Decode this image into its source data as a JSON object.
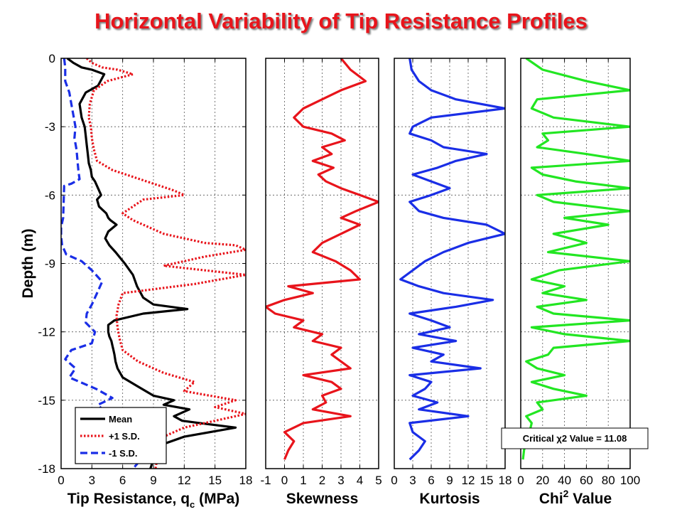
{
  "title": "Horizontal Variability of Tip Resistance Profiles",
  "chart_data": [
    {
      "type": "line",
      "name": "tip-resistance",
      "xlabel": "Tip Resistance, q",
      "xlabel_sub": "c",
      "xlabel_tail": " (MPa)",
      "ylabel": "Depth (m)",
      "xlim": [
        0,
        18
      ],
      "ylim": [
        -18,
        0
      ],
      "xticks": [
        0,
        3,
        6,
        9,
        12,
        15,
        18
      ],
      "yticks": [
        0,
        -3,
        -6,
        -9,
        -12,
        -15,
        -18
      ],
      "grid": true,
      "legend": {
        "position": "bottom-left",
        "entries": [
          "Mean",
          "+1 S.D.",
          "-1 S.D."
        ]
      },
      "series": [
        {
          "name": "Mean",
          "color": "#000000",
          "dash": "solid",
          "x": [
            0.6,
            1.2,
            2.0,
            3.0,
            4.2,
            3.6,
            2.4,
            1.8,
            2.0,
            2.3,
            2.4,
            2.5,
            2.6,
            2.7,
            2.9,
            3.0,
            3.3,
            3.6,
            3.9,
            3.5,
            3.7,
            4.4,
            4.6,
            4.8,
            5.4,
            4.6,
            4.3,
            4.7,
            5.3,
            6.2,
            7.0,
            7.4,
            8.0,
            9.0,
            12.3,
            8.0,
            5.2,
            4.6,
            4.6,
            4.7,
            4.9,
            5.0,
            5.1,
            5.2,
            5.3,
            5.5,
            6.0,
            7.5,
            9.0,
            11.0,
            10.0,
            12.5,
            11.0,
            11.8,
            13.5,
            17.0,
            12.0,
            9.5,
            9.3,
            9.0,
            8.7
          ],
          "y": [
            0,
            -0.2,
            -0.4,
            -0.5,
            -0.7,
            -1.2,
            -1.5,
            -2.0,
            -2.6,
            -3.0,
            -3.4,
            -3.8,
            -4.2,
            -4.6,
            -4.9,
            -5.2,
            -5.4,
            -5.7,
            -6.0,
            -6.2,
            -6.5,
            -6.8,
            -7.0,
            -7.1,
            -7.3,
            -7.6,
            -7.9,
            -8.2,
            -8.5,
            -9.0,
            -9.5,
            -10.0,
            -10.5,
            -10.8,
            -11.0,
            -11.2,
            -11.5,
            -11.7,
            -12.0,
            -12.2,
            -12.4,
            -12.6,
            -12.8,
            -13.0,
            -13.3,
            -13.6,
            -14.0,
            -14.4,
            -14.8,
            -15.0,
            -15.2,
            -15.4,
            -15.7,
            -15.9,
            -16.0,
            -16.2,
            -16.6,
            -17.0,
            -17.3,
            -17.6,
            -18.0
          ]
        },
        {
          "name": "+1 S.D.",
          "color": "#e8141b",
          "dash": "dotted",
          "x": [
            2.5,
            3.0,
            4.0,
            5.5,
            7.0,
            4.5,
            3.2,
            2.8,
            2.7,
            2.9,
            3.0,
            3.2,
            3.5,
            5.0,
            7.0,
            9.0,
            11.0,
            12.0,
            8.0,
            7.0,
            6.0,
            7.0,
            8.0,
            9.0,
            10.0,
            12.0,
            14.0,
            17.0,
            18.0,
            14.0,
            10.0,
            18.0,
            13.0,
            6.0,
            5.6,
            5.4,
            5.5,
            5.7,
            6.0,
            7.5,
            10.0,
            13.0,
            12.0,
            17.0,
            15.0,
            18.0,
            15.0,
            12.0,
            10.0,
            9.5,
            9.2
          ],
          "y": [
            0,
            -0.2,
            -0.4,
            -0.5,
            -0.7,
            -1.0,
            -1.4,
            -2.0,
            -2.6,
            -3.0,
            -3.5,
            -4.0,
            -4.5,
            -4.9,
            -5.2,
            -5.5,
            -5.8,
            -6.0,
            -6.2,
            -6.5,
            -6.8,
            -7.1,
            -7.3,
            -7.5,
            -7.7,
            -7.9,
            -8.1,
            -8.2,
            -8.4,
            -8.7,
            -9.1,
            -9.5,
            -9.9,
            -10.3,
            -10.8,
            -11.3,
            -11.8,
            -12.3,
            -12.8,
            -13.3,
            -13.8,
            -14.2,
            -14.6,
            -15.0,
            -15.3,
            -15.6,
            -15.9,
            -16.2,
            -16.6,
            -17.2,
            -18.0
          ]
        },
        {
          "name": "-1 S.D.",
          "color": "#1a2ee6",
          "dash": "dashed",
          "x": [
            0.3,
            0.4,
            0.4,
            0.8,
            1.0,
            1.2,
            1.4,
            1.3,
            1.5,
            1.6,
            1.7,
            1.8,
            1.0,
            0.3,
            0.2,
            0.0,
            0.0,
            0.1,
            0.5,
            2.0,
            3.0,
            4.0,
            3.5,
            3.0,
            2.5,
            2.4,
            3.3,
            3.0,
            1.0,
            0.4,
            1.4,
            0.8,
            3.4,
            5.0,
            3.6,
            4.2,
            4.0,
            4.5,
            6.0,
            5.3,
            7.0,
            8.0,
            9.0,
            8.0,
            7.5,
            7.4,
            7.2,
            7.0
          ],
          "y": [
            0,
            -0.4,
            -1.0,
            -1.5,
            -2.0,
            -2.5,
            -3.0,
            -3.5,
            -4.0,
            -4.5,
            -5.0,
            -5.3,
            -5.5,
            -5.6,
            -7.0,
            -7.4,
            -7.8,
            -8.2,
            -8.6,
            -8.9,
            -9.3,
            -9.8,
            -10.3,
            -10.8,
            -11.2,
            -11.6,
            -12.0,
            -12.5,
            -12.8,
            -13.2,
            -13.6,
            -14.0,
            -14.5,
            -14.9,
            -15.2,
            -15.5,
            -15.8,
            -16.1,
            -16.4,
            -16.6,
            -16.8,
            -17.0,
            -17.3,
            -17.5,
            -17.7,
            -17.8,
            -17.9,
            -18.0
          ]
        }
      ]
    },
    {
      "type": "line",
      "name": "skewness",
      "xlabel": "Skewness",
      "xlim": [
        -1,
        5
      ],
      "ylim": [
        -18,
        0
      ],
      "xticks": [
        -1,
        0,
        1,
        2,
        3,
        4,
        5
      ],
      "grid": true,
      "series": [
        {
          "color": "#e8141b",
          "x": [
            3.0,
            3.5,
            4.3,
            3.0,
            2.0,
            1.0,
            0.5,
            1.0,
            2.5,
            3.2,
            2.0,
            2.5,
            1.5,
            2.6,
            1.8,
            2.2,
            3.0,
            4.0,
            5.0,
            3.8,
            3.0,
            4.0,
            3.0,
            2.0,
            1.5,
            2.7,
            3.5,
            4.0,
            0.2,
            1.5,
            0.0,
            -1.0,
            -0.5,
            1.0,
            0.5,
            2.0,
            1.5,
            3.0,
            2.5,
            3.0,
            3.5,
            1.0,
            2.5,
            3.0,
            2.0,
            2.2,
            1.5,
            3.5,
            1.0,
            0.0,
            0.5,
            0.2,
            0.0
          ],
          "y": [
            0,
            -0.5,
            -1.0,
            -1.4,
            -1.8,
            -2.2,
            -2.6,
            -3.0,
            -3.3,
            -3.6,
            -3.9,
            -4.2,
            -4.5,
            -4.8,
            -5.1,
            -5.4,
            -5.7,
            -6.0,
            -6.3,
            -6.7,
            -7.0,
            -7.3,
            -7.7,
            -8.1,
            -8.5,
            -8.9,
            -9.3,
            -9.7,
            -10.0,
            -10.3,
            -10.6,
            -10.9,
            -11.2,
            -11.5,
            -11.8,
            -12.1,
            -12.4,
            -12.7,
            -13.0,
            -13.3,
            -13.6,
            -13.9,
            -14.2,
            -14.5,
            -14.8,
            -15.1,
            -15.4,
            -15.7,
            -16.0,
            -16.4,
            -16.8,
            -17.2,
            -17.6
          ]
        }
      ]
    },
    {
      "type": "line",
      "name": "kurtosis",
      "xlabel": "Kurtosis",
      "xlim": [
        0,
        18
      ],
      "ylim": [
        -18,
        0
      ],
      "xticks": [
        0,
        3,
        6,
        9,
        12,
        15,
        18
      ],
      "grid": true,
      "series": [
        {
          "color": "#1a2ee6",
          "x": [
            2.5,
            2.8,
            4.0,
            6.0,
            10.0,
            18.0,
            6.0,
            3.0,
            2.5,
            6.0,
            8.0,
            15.0,
            10.0,
            7.0,
            3.0,
            6.0,
            9.0,
            6.0,
            2.5,
            4.0,
            8.0,
            15.0,
            18.0,
            12.0,
            8.0,
            5.0,
            3.0,
            1.0,
            4.0,
            8.0,
            16.0,
            10.0,
            2.5,
            6.0,
            9.0,
            4.0,
            10.0,
            3.0,
            8.0,
            6.0,
            14.0,
            2.5,
            6.0,
            5.0,
            3.0,
            7.0,
            4.0,
            12.0,
            2.5,
            3.0,
            5.0,
            4.0,
            2.5
          ],
          "y": [
            0,
            -0.5,
            -1.0,
            -1.4,
            -1.8,
            -2.2,
            -2.6,
            -3.0,
            -3.3,
            -3.6,
            -3.9,
            -4.2,
            -4.5,
            -4.8,
            -5.1,
            -5.4,
            -5.7,
            -6.0,
            -6.3,
            -6.7,
            -7.0,
            -7.3,
            -7.7,
            -8.1,
            -8.5,
            -8.9,
            -9.3,
            -9.7,
            -10.0,
            -10.3,
            -10.6,
            -10.9,
            -11.2,
            -11.5,
            -11.8,
            -12.1,
            -12.4,
            -12.7,
            -13.0,
            -13.3,
            -13.6,
            -13.9,
            -14.2,
            -14.5,
            -14.8,
            -15.1,
            -15.4,
            -15.7,
            -16.0,
            -16.4,
            -16.8,
            -17.2,
            -17.6
          ]
        }
      ]
    },
    {
      "type": "line",
      "name": "chi2",
      "xlabel": "Chi",
      "xlabel_sup": "2",
      "xlabel_tail": " Value",
      "xlim": [
        0,
        100
      ],
      "ylim": [
        -18,
        0
      ],
      "xticks": [
        0,
        20,
        40,
        60,
        80,
        100
      ],
      "grid": true,
      "annotation": "Critical χ2 Value = 11.08",
      "series": [
        {
          "color": "#22e622",
          "x": [
            5.0,
            20.0,
            60.0,
            100.0,
            15.0,
            10.0,
            30.0,
            100.0,
            20.0,
            25.0,
            15.0,
            60.0,
            100.0,
            10.0,
            20.0,
            50.0,
            100.0,
            15.0,
            30.0,
            100.0,
            40.0,
            80.0,
            30.0,
            60.0,
            25.0,
            100.0,
            35.0,
            10.0,
            40.0,
            20.0,
            60.0,
            15.0,
            30.0,
            100.0,
            10.0,
            40.0,
            100.0,
            30.0,
            25.0,
            5.0,
            15.0,
            40.0,
            10.0,
            30.0,
            60.0,
            15.0,
            20.0,
            5.0,
            10.0,
            8.0,
            5.0,
            3.0,
            2.0
          ],
          "y": [
            0,
            -0.5,
            -1.0,
            -1.4,
            -1.8,
            -2.2,
            -2.6,
            -3.0,
            -3.3,
            -3.6,
            -3.9,
            -4.2,
            -4.5,
            -4.8,
            -5.1,
            -5.4,
            -5.7,
            -6.0,
            -6.3,
            -6.7,
            -7.0,
            -7.3,
            -7.7,
            -8.1,
            -8.5,
            -8.9,
            -9.3,
            -9.7,
            -10.0,
            -10.3,
            -10.6,
            -10.9,
            -11.2,
            -11.5,
            -11.8,
            -12.1,
            -12.4,
            -12.7,
            -13.0,
            -13.3,
            -13.6,
            -13.9,
            -14.2,
            -14.5,
            -14.8,
            -15.1,
            -15.4,
            -15.7,
            -16.0,
            -16.4,
            -16.8,
            -17.2,
            -17.6
          ]
        }
      ]
    }
  ]
}
